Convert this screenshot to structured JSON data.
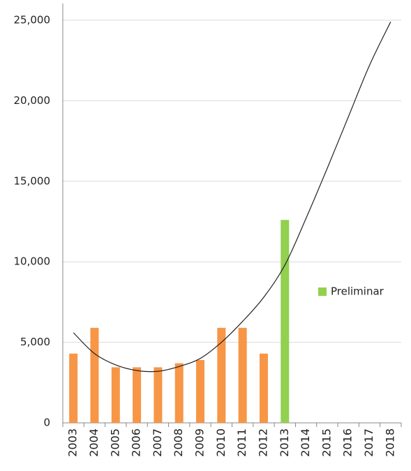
{
  "chart_data": {
    "type": "bar",
    "categories": [
      "2003",
      "2004",
      "2005",
      "2006",
      "2007",
      "2008",
      "2009",
      "2010",
      "2011",
      "2012",
      "2013",
      "2014",
      "2015",
      "2016",
      "2017",
      "2018"
    ],
    "series": [
      {
        "color": "#f79646",
        "values": [
          4300,
          5900,
          3450,
          3450,
          3450,
          3700,
          3900,
          5900,
          5900,
          4300,
          null,
          null,
          null,
          null,
          null,
          null
        ]
      },
      {
        "name": "Preliminar",
        "color": "#92d050",
        "values": [
          null,
          null,
          null,
          null,
          null,
          null,
          null,
          null,
          null,
          null,
          12600,
          null,
          null,
          null,
          null,
          null
        ]
      },
      {
        "type": "line",
        "color": "#222222",
        "values": [
          5600,
          4300,
          3600,
          3250,
          3200,
          3500,
          4000,
          5000,
          6300,
          7800,
          9800,
          12700,
          15800,
          19000,
          22200,
          24900
        ]
      }
    ],
    "ylim": [
      0,
      25000
    ],
    "yticks": [
      0,
      {
        "value": 5000,
        "label": "5,000"
      },
      {
        "value": 10000,
        "label": "10,000"
      },
      {
        "value": 15000,
        "label": "15,000"
      },
      {
        "value": 20000,
        "label": "20,000"
      },
      {
        "value": 25000,
        "label": "25,000"
      }
    ],
    "grid": true
  }
}
